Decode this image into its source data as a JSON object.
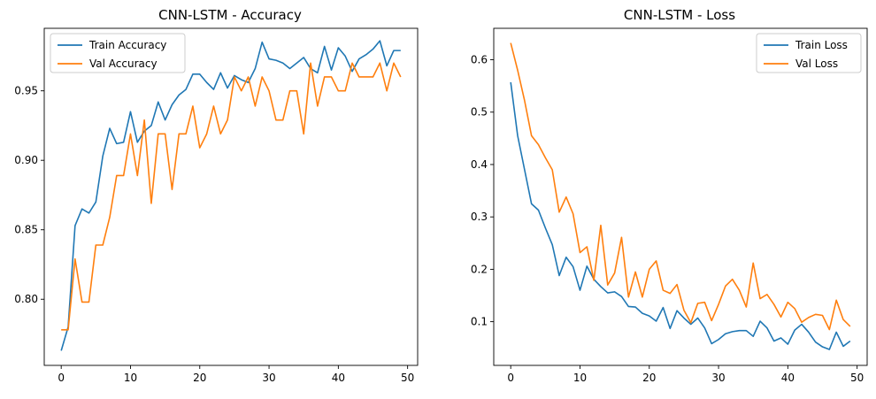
{
  "chart_data": [
    {
      "type": "line",
      "title": "CNN-LSTM - Accuracy",
      "xlabel": "",
      "ylabel": "",
      "xlim": [
        -2.45,
        51.45
      ],
      "ylim": [
        0.7524,
        0.995
      ],
      "xticks": [
        0,
        10,
        20,
        30,
        40,
        50
      ],
      "xtick_labels": [
        "0",
        "10",
        "20",
        "30",
        "40",
        "50"
      ],
      "yticks": [
        0.8,
        0.85,
        0.9,
        0.95
      ],
      "ytick_labels": [
        "0.80",
        "0.85",
        "0.90",
        "0.95"
      ],
      "grid": false,
      "legend_position": "upper-left",
      "x": [
        0,
        1,
        2,
        3,
        4,
        5,
        6,
        7,
        8,
        9,
        10,
        11,
        12,
        13,
        14,
        15,
        16,
        17,
        18,
        19,
        20,
        21,
        22,
        23,
        24,
        25,
        26,
        27,
        28,
        29,
        30,
        31,
        32,
        33,
        34,
        35,
        36,
        37,
        38,
        39,
        40,
        41,
        42,
        43,
        44,
        45,
        46,
        47,
        48,
        49
      ],
      "series": [
        {
          "name": "Train Accuracy",
          "color": "#1f77b4",
          "values": [
            0.763,
            0.78,
            0.853,
            0.865,
            0.862,
            0.87,
            0.903,
            0.923,
            0.912,
            0.913,
            0.935,
            0.913,
            0.921,
            0.925,
            0.942,
            0.929,
            0.94,
            0.947,
            0.951,
            0.962,
            0.962,
            0.956,
            0.951,
            0.963,
            0.952,
            0.961,
            0.958,
            0.956,
            0.966,
            0.985,
            0.973,
            0.972,
            0.97,
            0.966,
            0.97,
            0.974,
            0.966,
            0.963,
            0.982,
            0.965,
            0.981,
            0.975,
            0.964,
            0.973,
            0.976,
            0.98,
            0.986,
            0.968,
            0.979,
            0.979
          ]
        },
        {
          "name": "Val Accuracy",
          "color": "#ff7f0e",
          "values": [
            0.778,
            0.778,
            0.829,
            0.798,
            0.798,
            0.839,
            0.839,
            0.859,
            0.889,
            0.889,
            0.919,
            0.889,
            0.929,
            0.869,
            0.919,
            0.919,
            0.879,
            0.919,
            0.919,
            0.939,
            0.909,
            0.919,
            0.939,
            0.919,
            0.929,
            0.96,
            0.95,
            0.96,
            0.939,
            0.96,
            0.95,
            0.929,
            0.929,
            0.95,
            0.95,
            0.919,
            0.97,
            0.939,
            0.96,
            0.96,
            0.95,
            0.95,
            0.97,
            0.96,
            0.96,
            0.96,
            0.97,
            0.95,
            0.97,
            0.96
          ]
        }
      ]
    },
    {
      "type": "line",
      "title": "CNN-LSTM - Loss",
      "xlabel": "",
      "ylabel": "",
      "xlim": [
        -2.45,
        51.45
      ],
      "ylim": [
        0.0166,
        0.66
      ],
      "xticks": [
        0,
        10,
        20,
        30,
        40,
        50
      ],
      "xtick_labels": [
        "0",
        "10",
        "20",
        "30",
        "40",
        "50"
      ],
      "yticks": [
        0.1,
        0.2,
        0.3,
        0.4,
        0.5,
        0.6
      ],
      "ytick_labels": [
        "0.1",
        "0.2",
        "0.3",
        "0.4",
        "0.5",
        "0.6"
      ],
      "grid": false,
      "legend_position": "upper-right",
      "x": [
        0,
        1,
        2,
        3,
        4,
        5,
        6,
        7,
        8,
        9,
        10,
        11,
        12,
        13,
        14,
        15,
        16,
        17,
        18,
        19,
        20,
        21,
        22,
        23,
        24,
        25,
        26,
        27,
        28,
        29,
        30,
        31,
        32,
        33,
        34,
        35,
        36,
        37,
        38,
        39,
        40,
        41,
        42,
        43,
        44,
        45,
        46,
        47,
        48,
        49
      ],
      "series": [
        {
          "name": "Train Loss",
          "color": "#1f77b4",
          "values": [
            0.557,
            0.455,
            0.39,
            0.325,
            0.313,
            0.279,
            0.247,
            0.188,
            0.223,
            0.205,
            0.16,
            0.206,
            0.181,
            0.167,
            0.155,
            0.157,
            0.148,
            0.129,
            0.128,
            0.116,
            0.111,
            0.101,
            0.127,
            0.087,
            0.121,
            0.107,
            0.095,
            0.107,
            0.088,
            0.058,
            0.066,
            0.077,
            0.081,
            0.083,
            0.083,
            0.072,
            0.101,
            0.088,
            0.063,
            0.069,
            0.057,
            0.084,
            0.095,
            0.08,
            0.061,
            0.052,
            0.047,
            0.08,
            0.053,
            0.063
          ]
        },
        {
          "name": "Val Loss",
          "color": "#ff7f0e",
          "values": [
            0.632,
            0.58,
            0.522,
            0.455,
            0.438,
            0.413,
            0.39,
            0.309,
            0.338,
            0.306,
            0.232,
            0.243,
            0.179,
            0.284,
            0.17,
            0.193,
            0.261,
            0.147,
            0.195,
            0.147,
            0.2,
            0.216,
            0.16,
            0.154,
            0.171,
            0.122,
            0.098,
            0.135,
            0.137,
            0.102,
            0.133,
            0.168,
            0.181,
            0.16,
            0.128,
            0.212,
            0.144,
            0.152,
            0.133,
            0.109,
            0.137,
            0.125,
            0.099,
            0.108,
            0.114,
            0.112,
            0.085,
            0.141,
            0.104,
            0.091
          ]
        }
      ]
    }
  ]
}
